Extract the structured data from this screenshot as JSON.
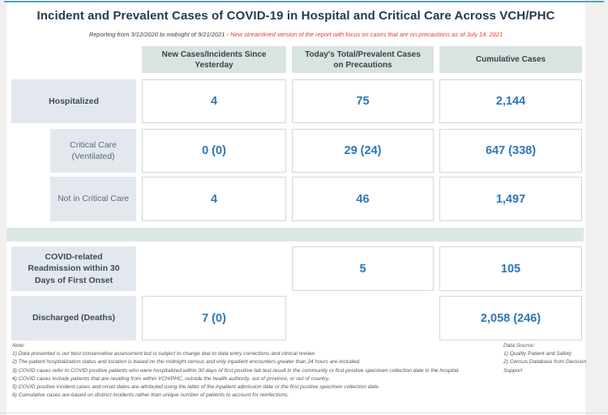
{
  "report": {
    "title": "Incident and Prevalent Cases of COVID-19 in Hospital and Critical Care Across VCH/PHC",
    "subtitle": {
      "reporting_period": "Reporting from 3/12/2020 to midnight of 9/21/2021 - ",
      "update_note": "New streamlined version of the report with focus on cases that are on precautions as of July 14, 2021"
    }
  },
  "table": {
    "column_headers": [
      "New Cases/Incidents Since Yesterday",
      "Today's Total/Prevalent Cases on Precautions",
      "Cumulative Cases"
    ],
    "rows": [
      {
        "label": "Hospitalized",
        "new_cases": "4",
        "today_total": "75",
        "cumulative": "2,144"
      },
      {
        "label": "Critical Care (Ventilated)",
        "new_cases": "0 (0)",
        "today_total": "29 (24)",
        "cumulative": "647 (338)"
      },
      {
        "label": "Not in Critical Care",
        "new_cases": "4",
        "today_total": "46",
        "cumulative": "1,497"
      },
      {
        "label": "COVID-related Readmission within 30 Days of First Onset",
        "new_cases": "",
        "today_total": "5",
        "cumulative": "105"
      },
      {
        "label": "Discharged (Deaths)",
        "new_cases": "7 (0)",
        "today_total": "",
        "cumulative": "2,058 (246)"
      }
    ]
  },
  "notes": {
    "heading": "Note:",
    "lines": [
      "1) Data presented is our best conservative assessment but is subject to change due to data entry corrections and clinical review.",
      "2)  The patient hospitalization status and location is based on the midnight census and only inpatient encounters greater than 24 hours are included.",
      "3) COVID cases refer to COVID positive patients who were hospitalized within 30 days of first positive lab test result in the community or first positive specimen collection date in the hospital.",
      "4) COVID cases include patients that are residing from within VCH/PHC, outside the health authority, out of province, or out of country.",
      "5) COVID positive incident cases and onset dates are attributed using the latter of the inpatient admission date or the first positive specimen collection date.",
      "6) Cumulative cases are based on distinct incidents rather than unique number of patients to account for reinfections."
    ]
  },
  "data_source": {
    "heading": "Data Source:",
    "lines": [
      "1) Quality Patient and Safety",
      "2) Census Database from Decision Support"
    ]
  },
  "chart_data": {
    "type": "table",
    "title": "Incident and Prevalent Cases of COVID-19 in Hospital and Critical Care Across VCH/PHC",
    "columns": [
      "New Cases/Incidents Since Yesterday",
      "Today's Total/Prevalent Cases on Precautions",
      "Cumulative Cases"
    ],
    "row_labels": [
      "Hospitalized",
      "Critical Care (Ventilated)",
      "Not in Critical Care",
      "COVID-related Readmission within 30 Days of First Onset",
      "Discharged (Deaths)"
    ],
    "values": [
      [
        "4",
        "75",
        "2,144"
      ],
      [
        "0 (0)",
        "29 (24)",
        "647 (338)"
      ],
      [
        "4",
        "46",
        "1,497"
      ],
      [
        "",
        "5",
        "105"
      ],
      [
        "7 (0)",
        "",
        "2,058 (246)"
      ]
    ]
  },
  "colors": {
    "value_blue": "#2e77b5",
    "header_bg": "#d9e4e0",
    "label_bg": "#e3e8ee",
    "band_bg": "#dce7e3",
    "highlight_red": "#e8382f",
    "top_bar_blue": "#5b9fb4"
  }
}
